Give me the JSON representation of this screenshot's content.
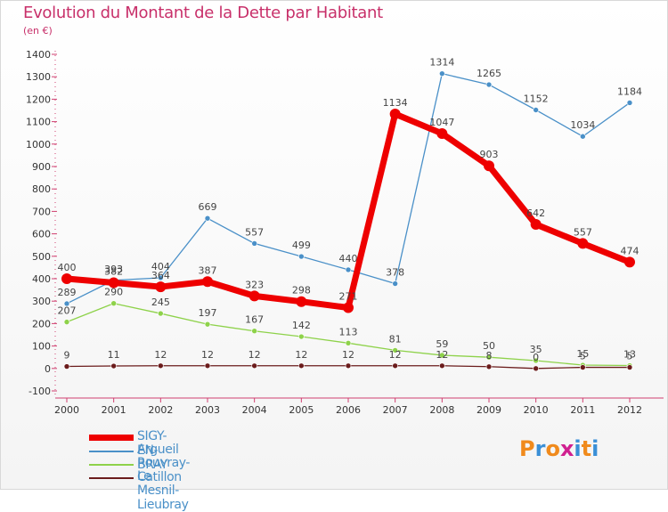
{
  "title": "Evolution du Montant de la Dette par Habitant",
  "subtitle": "(en €)",
  "logo": {
    "letters": [
      "P",
      "r",
      "o",
      "x",
      "i",
      "t",
      "i"
    ],
    "colors": [
      "#f08a1c",
      "#3a8fd6",
      "#f08a1c",
      "#d02090",
      "#3a8fd6",
      "#f08a1c",
      "#3a8fd6"
    ]
  },
  "chart_data": {
    "type": "line",
    "x": [
      "2000",
      "2001",
      "2002",
      "2003",
      "2004",
      "2005",
      "2006",
      "2007",
      "2008",
      "2009",
      "2010",
      "2011",
      "2012"
    ],
    "ylim": [
      -100,
      1400
    ],
    "yticks": [
      "-100",
      "0",
      "100",
      "200",
      "300",
      "400",
      "500",
      "600",
      "700",
      "800",
      "900",
      "1000",
      "1100",
      "1200",
      "1300",
      "1400"
    ],
    "grid": false,
    "legend": "bottom-left",
    "series": [
      {
        "name": "Argueil",
        "color": "#4a90c8",
        "values": [
          289,
          393,
          404,
          669,
          557,
          499,
          440,
          378,
          1314,
          1265,
          1152,
          1034,
          1184
        ]
      },
      {
        "name": "Rouvray-Catillon",
        "color": "#8ed24a",
        "values": [
          207,
          290,
          245,
          197,
          167,
          142,
          113,
          81,
          59,
          50,
          35,
          15,
          13
        ]
      },
      {
        "name": "Le Mesnil-Lieubray",
        "color": "#6b1c1c",
        "values": [
          9,
          11,
          12,
          12,
          12,
          12,
          12,
          12,
          12,
          8,
          0,
          5,
          5
        ],
        "labels": [
          "9",
          "11",
          "12",
          "12",
          "12",
          "12",
          "12",
          "12",
          "12",
          "8",
          "0",
          "5",
          "5"
        ]
      },
      {
        "name": "SIGY-EN-BRAY",
        "color": "#ee0000",
        "values": [
          400,
          382,
          364,
          387,
          323,
          298,
          271,
          1134,
          1047,
          903,
          642,
          557,
          474
        ]
      }
    ]
  }
}
